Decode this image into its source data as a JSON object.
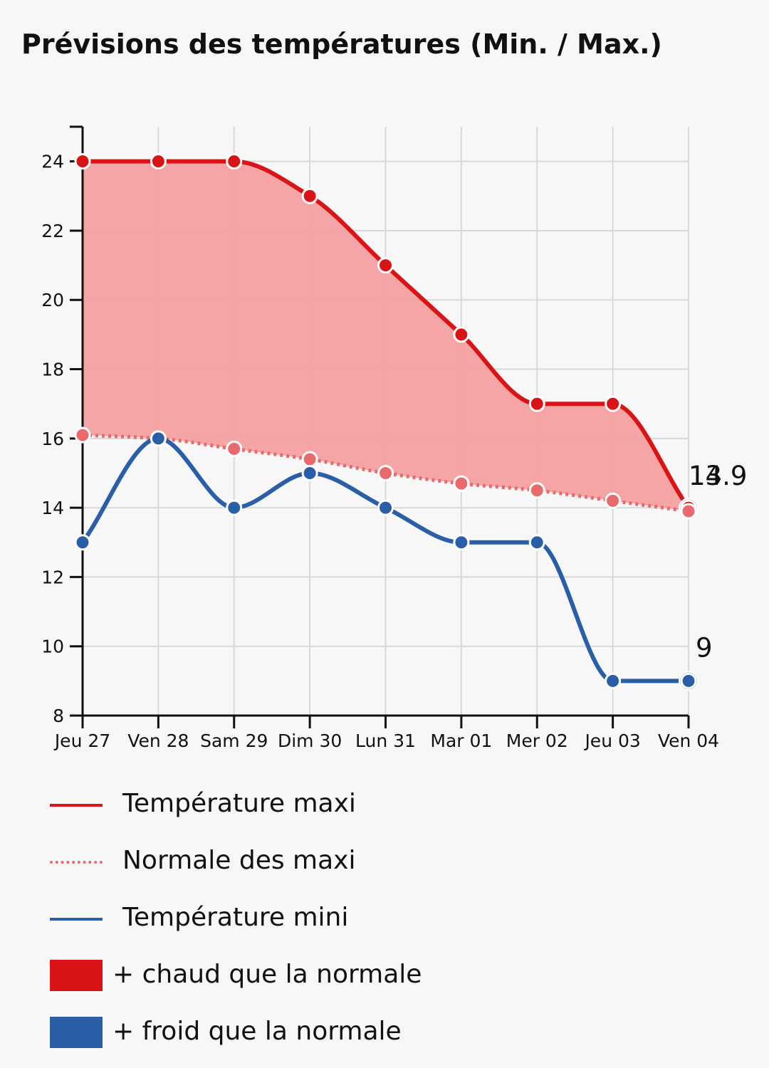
{
  "title": "Prévisions des températures (Min. / Max.)",
  "chart_data": {
    "type": "line",
    "categories": [
      "Jeu 27",
      "Ven 28",
      "Sam 29",
      "Dim 30",
      "Lun 31",
      "Mar 01",
      "Mer 02",
      "Jeu 03",
      "Ven 04"
    ],
    "series": [
      {
        "name": "Température maxi",
        "values": [
          24,
          24,
          24,
          23,
          21,
          19,
          17,
          17,
          14
        ],
        "color": "#d81417",
        "style": "solid"
      },
      {
        "name": "Normale des maxi",
        "values": [
          16.1,
          16.0,
          15.7,
          15.4,
          15.0,
          14.7,
          14.5,
          14.2,
          13.9
        ],
        "color": "#e86a6c",
        "style": "dotted"
      },
      {
        "name": "Température mini",
        "values": [
          13,
          16,
          14,
          15,
          14,
          13,
          13,
          9,
          9
        ],
        "color": "#2a5fa8",
        "style": "solid"
      }
    ],
    "fill_between": {
      "upper": "Température maxi",
      "lower": "Normale des maxi",
      "color": "#f4a0a0"
    },
    "end_labels": [
      "14",
      "13.9",
      "9"
    ],
    "y_ticks": [
      8,
      10,
      12,
      14,
      16,
      18,
      20,
      22,
      24
    ],
    "ylim": [
      8,
      25
    ],
    "grid": true,
    "xlabel": "",
    "ylabel": ""
  },
  "legend": {
    "items": [
      {
        "label": "Température maxi",
        "kind": "line",
        "color": "#d81417"
      },
      {
        "label": "Normale des maxi",
        "kind": "dotted",
        "color": "#e86a6c"
      },
      {
        "label": "Température mini",
        "kind": "line",
        "color": "#2a5fa8"
      },
      {
        "label": "+ chaud que la normale",
        "kind": "box",
        "color": "#d81417"
      },
      {
        "label": "+ froid que la normale",
        "kind": "box",
        "color": "#2a5fa8"
      }
    ]
  }
}
